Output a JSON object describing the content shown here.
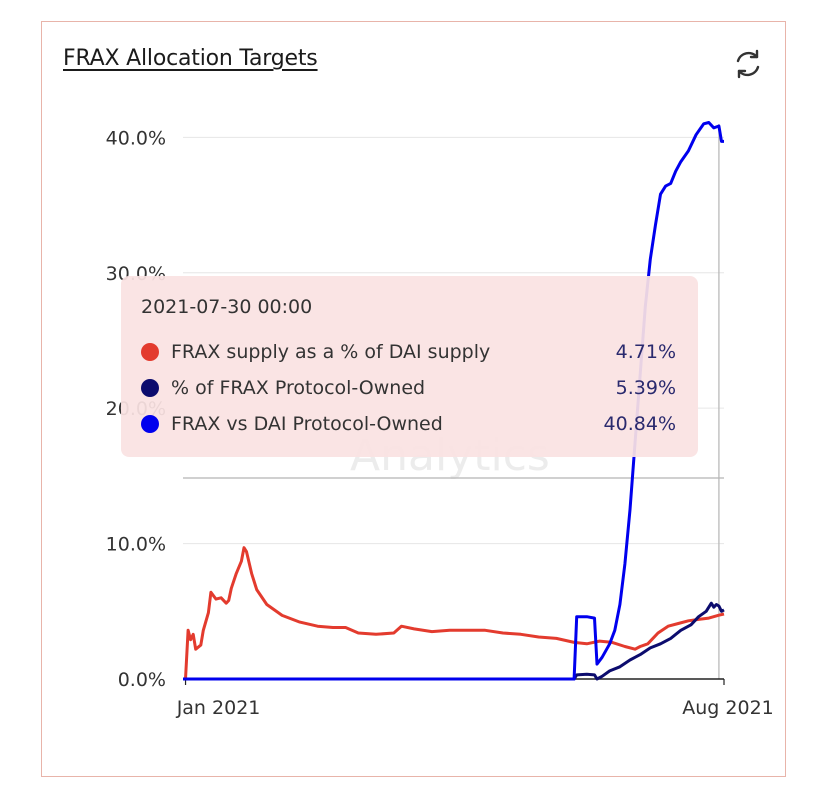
{
  "card": {
    "title": "FRAX Allocation Targets",
    "refresh_icon": "refresh-icon"
  },
  "tooltip": {
    "date": "2021-07-30 00:00",
    "rows": [
      {
        "label": "FRAX supply as a % of DAI supply",
        "value": "4.71%",
        "color": "#e33b2e"
      },
      {
        "label": "% of FRAX Protocol-Owned",
        "value": "5.39%",
        "color": "#0c0c6e"
      },
      {
        "label": "FRAX vs DAI Protocol-Owned",
        "value": "40.84%",
        "color": "#0000ee"
      }
    ]
  },
  "watermark": "Analytics",
  "chart_data": {
    "type": "line",
    "x_ticks": [
      "Jan 2021",
      "Aug 2021"
    ],
    "y_ticks": [
      "0.0%",
      "10.0%",
      "20.0%",
      "30.0%",
      "40.0%"
    ],
    "ylim": [
      0,
      40.84
    ],
    "xlim": [
      "2020-12-31",
      "2021-08-01"
    ],
    "hover_date": "2021-07-30",
    "series": [
      {
        "name": "FRAX supply as a % of DAI supply",
        "color": "#e33b2e",
        "points": [
          [
            "2020-12-31",
            0
          ],
          [
            "2021-01-01",
            0
          ],
          [
            "2021-01-02",
            3.6
          ],
          [
            "2021-01-03",
            2.9
          ],
          [
            "2021-01-04",
            3.3
          ],
          [
            "2021-01-05",
            2.2
          ],
          [
            "2021-01-07",
            2.5
          ],
          [
            "2021-01-08",
            3.6
          ],
          [
            "2021-01-10",
            4.9
          ],
          [
            "2021-01-11",
            6.4
          ],
          [
            "2021-01-13",
            5.9
          ],
          [
            "2021-01-15",
            6.0
          ],
          [
            "2021-01-17",
            5.6
          ],
          [
            "2021-01-18",
            5.8
          ],
          [
            "2021-01-19",
            6.7
          ],
          [
            "2021-01-21",
            7.8
          ],
          [
            "2021-01-23",
            8.7
          ],
          [
            "2021-01-24",
            9.7
          ],
          [
            "2021-01-25",
            9.4
          ],
          [
            "2021-01-27",
            7.8
          ],
          [
            "2021-01-29",
            6.6
          ],
          [
            "2021-02-02",
            5.5
          ],
          [
            "2021-02-08",
            4.7
          ],
          [
            "2021-02-15",
            4.2
          ],
          [
            "2021-02-22",
            3.9
          ],
          [
            "2021-02-28",
            3.8
          ],
          [
            "2021-03-05",
            3.8
          ],
          [
            "2021-03-10",
            3.4
          ],
          [
            "2021-03-17",
            3.3
          ],
          [
            "2021-03-24",
            3.4
          ],
          [
            "2021-03-27",
            3.9
          ],
          [
            "2021-04-01",
            3.7
          ],
          [
            "2021-04-08",
            3.5
          ],
          [
            "2021-04-15",
            3.6
          ],
          [
            "2021-04-22",
            3.6
          ],
          [
            "2021-04-29",
            3.6
          ],
          [
            "2021-05-06",
            3.4
          ],
          [
            "2021-05-13",
            3.3
          ],
          [
            "2021-05-20",
            3.1
          ],
          [
            "2021-05-27",
            3.0
          ],
          [
            "2021-06-03",
            2.7
          ],
          [
            "2021-06-08",
            2.6
          ],
          [
            "2021-06-13",
            2.8
          ],
          [
            "2021-06-18",
            2.7
          ],
          [
            "2021-06-23",
            2.4
          ],
          [
            "2021-06-27",
            2.2
          ],
          [
            "2021-06-29",
            2.4
          ],
          [
            "2021-07-02",
            2.6
          ],
          [
            "2021-07-06",
            3.4
          ],
          [
            "2021-07-10",
            3.9
          ],
          [
            "2021-07-14",
            4.1
          ],
          [
            "2021-07-18",
            4.3
          ],
          [
            "2021-07-22",
            4.4
          ],
          [
            "2021-07-26",
            4.5
          ],
          [
            "2021-07-30",
            4.71
          ],
          [
            "2021-08-01",
            4.8
          ]
        ]
      },
      {
        "name": "% of FRAX Protocol-Owned",
        "color": "#0c0c6e",
        "points": [
          [
            "2020-12-31",
            0
          ],
          [
            "2021-06-03",
            0
          ],
          [
            "2021-06-04",
            0.3
          ],
          [
            "2021-06-08",
            0.35
          ],
          [
            "2021-06-11",
            0.3
          ],
          [
            "2021-06-12",
            0.0
          ],
          [
            "2021-06-14",
            0.2
          ],
          [
            "2021-06-17",
            0.6
          ],
          [
            "2021-06-21",
            0.9
          ],
          [
            "2021-06-25",
            1.4
          ],
          [
            "2021-06-29",
            1.8
          ],
          [
            "2021-07-03",
            2.3
          ],
          [
            "2021-07-07",
            2.6
          ],
          [
            "2021-07-11",
            3.0
          ],
          [
            "2021-07-15",
            3.6
          ],
          [
            "2021-07-19",
            4.0
          ],
          [
            "2021-07-22",
            4.6
          ],
          [
            "2021-07-25",
            5.0
          ],
          [
            "2021-07-27",
            5.6
          ],
          [
            "2021-07-28",
            5.3
          ],
          [
            "2021-07-29",
            5.5
          ],
          [
            "2021-07-30",
            5.39
          ],
          [
            "2021-07-31",
            5.0
          ],
          [
            "2021-08-01",
            5.1
          ]
        ]
      },
      {
        "name": "FRAX vs DAI Protocol-Owned",
        "color": "#0000ee",
        "points": [
          [
            "2020-12-31",
            0
          ],
          [
            "2021-06-03",
            0
          ],
          [
            "2021-06-04",
            4.6
          ],
          [
            "2021-06-08",
            4.6
          ],
          [
            "2021-06-11",
            4.5
          ],
          [
            "2021-06-12",
            1.1
          ],
          [
            "2021-06-14",
            1.6
          ],
          [
            "2021-06-17",
            2.6
          ],
          [
            "2021-06-19",
            3.6
          ],
          [
            "2021-06-21",
            5.5
          ],
          [
            "2021-06-23",
            8.5
          ],
          [
            "2021-06-25",
            12.5
          ],
          [
            "2021-06-27",
            17.5
          ],
          [
            "2021-06-29",
            22.5
          ],
          [
            "2021-07-01",
            27.5
          ],
          [
            "2021-07-03",
            31.0
          ],
          [
            "2021-07-05",
            33.5
          ],
          [
            "2021-07-07",
            35.8
          ],
          [
            "2021-07-09",
            36.4
          ],
          [
            "2021-07-11",
            36.6
          ],
          [
            "2021-07-13",
            37.5
          ],
          [
            "2021-07-15",
            38.2
          ],
          [
            "2021-07-18",
            39.0
          ],
          [
            "2021-07-21",
            40.2
          ],
          [
            "2021-07-24",
            41.0
          ],
          [
            "2021-07-26",
            41.1
          ],
          [
            "2021-07-28",
            40.7
          ],
          [
            "2021-07-30",
            40.84
          ],
          [
            "2021-07-31",
            39.7
          ],
          [
            "2021-08-01",
            39.7
          ]
        ]
      }
    ]
  }
}
